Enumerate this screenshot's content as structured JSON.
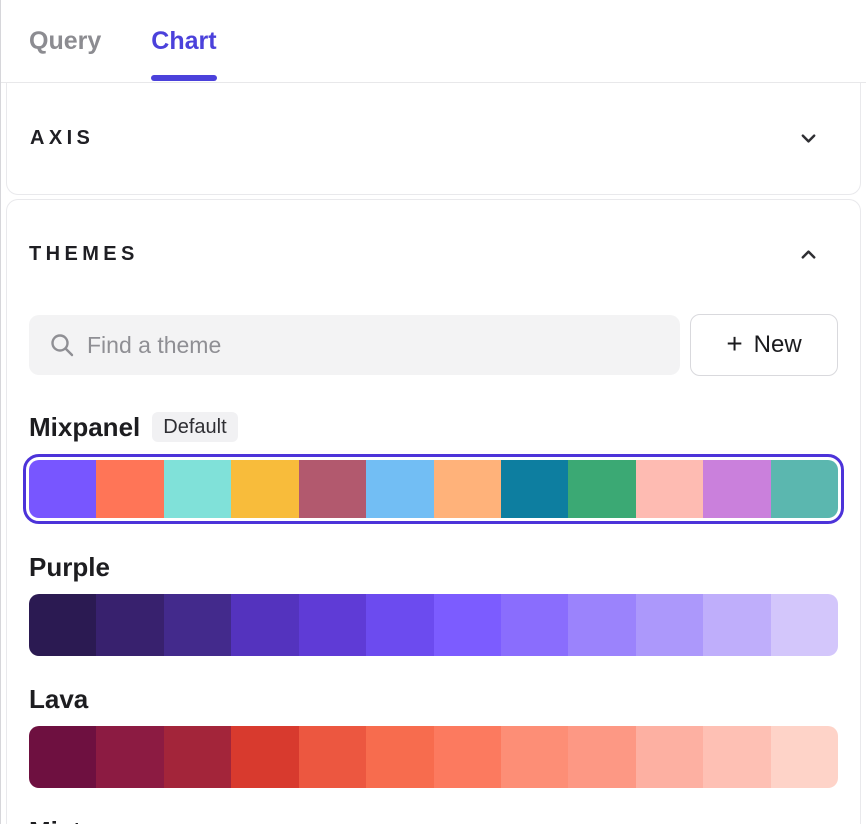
{
  "tabs": [
    {
      "label": "Query",
      "active": false
    },
    {
      "label": "Chart",
      "active": true
    }
  ],
  "axis_section": {
    "title": "AXIS",
    "state": "collapsed",
    "chevron": "chevron-down"
  },
  "themes_section": {
    "title": "THEMES",
    "state": "expanded",
    "chevron": "chevron-up"
  },
  "search": {
    "placeholder": "Find a theme",
    "value": ""
  },
  "new_button": {
    "plus": "+",
    "label": "New"
  },
  "themes": [
    {
      "name": "Mixpanel",
      "badge": "Default",
      "selected": true,
      "colors": [
        "#7856FF",
        "#FF7557",
        "#80E1D9",
        "#F8BC3B",
        "#B2596E",
        "#72BEF4",
        "#FFB27A",
        "#0D7EA0",
        "#3BA974",
        "#FEBBB2",
        "#CA80DC",
        "#5BB7AF"
      ]
    },
    {
      "name": "Purple",
      "badge": null,
      "selected": false,
      "colors": [
        "#2B1A52",
        "#38216E",
        "#432A8C",
        "#5433BE",
        "#5F3BD6",
        "#6C4BEF",
        "#7C5CFF",
        "#8A6DFD",
        "#9B83FC",
        "#AC98FB",
        "#BFAEFB",
        "#D3C6FB"
      ]
    },
    {
      "name": "Lava",
      "badge": null,
      "selected": false,
      "colors": [
        "#6E1040",
        "#8C1B42",
        "#A3253A",
        "#D83A2E",
        "#EC5740",
        "#F76C4E",
        "#FC7A5F",
        "#FD8E76",
        "#FD9884",
        "#FDB0A2",
        "#FEC0B4",
        "#FED3C8"
      ]
    },
    {
      "name": "Mist",
      "badge": null,
      "selected": false,
      "colors": []
    }
  ],
  "colors": {
    "accent": "#4B41DB",
    "selection_ring": "#4C33D9",
    "inactive_tab": "#8c8c91",
    "text_dark": "#1d1d20",
    "search_bg": "#f3f3f4",
    "card_border": "#e9e9ec"
  }
}
